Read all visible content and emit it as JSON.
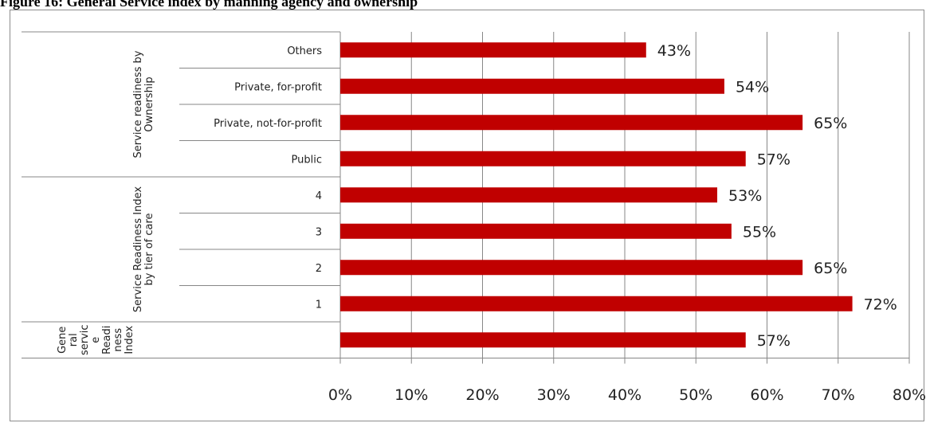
{
  "figure": {
    "title": "Figure 16: General Service index by manning agency and ownership"
  },
  "colors": {
    "bar": "#c00000",
    "grid": "#878787",
    "axis": "#878787"
  },
  "chart_data": {
    "type": "bar",
    "orientation": "horizontal",
    "title": "",
    "xlabel": "",
    "ylabel": "",
    "xlim": [
      0,
      0.8
    ],
    "x_ticks": [
      0,
      0.1,
      0.2,
      0.3,
      0.4,
      0.5,
      0.6,
      0.7,
      0.8
    ],
    "x_tick_labels": [
      "0%",
      "10%",
      "20%",
      "30%",
      "40%",
      "50%",
      "60%",
      "70%",
      "80%"
    ],
    "grid": true,
    "legend": "none",
    "groups": [
      {
        "label_lines": [
          "Service readiness by",
          "Ownership"
        ],
        "categories": [
          "Others",
          "Private, for-profit",
          "Private, not-for-profit",
          "Public"
        ],
        "values": [
          0.43,
          0.54,
          0.65,
          0.57
        ],
        "data_labels": [
          "43%",
          "54%",
          "65%",
          "57%"
        ]
      },
      {
        "label_lines": [
          "Service Readiness Index",
          "by tier of care"
        ],
        "categories": [
          "4",
          "3",
          "2",
          "1"
        ],
        "values": [
          0.53,
          0.55,
          0.65,
          0.72
        ],
        "data_labels": [
          "53%",
          "55%",
          "65%",
          "72%"
        ]
      },
      {
        "label_lines": [
          "Gene",
          "ral",
          "servic",
          "e",
          "Readi",
          "ness",
          "Index"
        ],
        "categories": [
          ""
        ],
        "values": [
          0.57
        ],
        "data_labels": [
          "57%"
        ]
      }
    ]
  }
}
